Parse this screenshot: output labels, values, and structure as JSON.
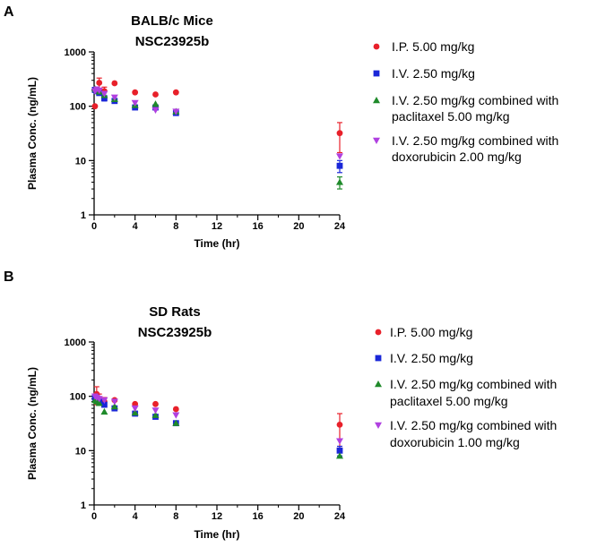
{
  "panels": [
    {
      "letter": "A"
    },
    {
      "letter": "B"
    }
  ],
  "chart_data": [
    {
      "type": "scatter",
      "title_line1": "BALB/c Mice",
      "title_line2": "NSC23925b",
      "xlabel": "Time (hr)",
      "ylabel": "Plasma Conc. (ng/mL)",
      "yscale": "log",
      "ylim": [
        1,
        1000
      ],
      "xlim": [
        0,
        24
      ],
      "xticks": [
        0,
        4,
        8,
        12,
        16,
        20,
        24
      ],
      "yticks": [
        1,
        10,
        100,
        1000
      ],
      "legend_position": "right",
      "series": [
        {
          "name": "I.P. 5.00 mg/kg",
          "marker": "circle",
          "color": "#e8202a",
          "x": [
            0.083,
            0.5,
            1,
            2,
            4,
            6,
            8,
            24
          ],
          "y": [
            100,
            270,
            190,
            265,
            180,
            165,
            180,
            32
          ],
          "err": [
            0,
            60,
            35,
            0,
            0,
            0,
            0,
            18
          ]
        },
        {
          "name": "I.V. 2.50 mg/kg",
          "marker": "square",
          "color": "#1a27d8",
          "x": [
            0.083,
            0.25,
            0.5,
            1,
            2,
            4,
            6,
            8,
            24
          ],
          "y": [
            200,
            190,
            175,
            140,
            125,
            95,
            95,
            75,
            8
          ],
          "err": [
            20,
            0,
            0,
            15,
            0,
            0,
            0,
            0,
            2
          ]
        },
        {
          "name": "I.V. 2.50 mg/kg combined with paclitaxel 5.00 mg/kg",
          "marker": "triangle-up",
          "color": "#1f8a2a",
          "x": [
            0.083,
            0.25,
            0.5,
            1,
            2,
            4,
            6,
            8,
            24
          ],
          "y": [
            210,
            200,
            185,
            160,
            135,
            105,
            110,
            80,
            4
          ],
          "err": [
            0,
            0,
            0,
            0,
            0,
            0,
            0,
            0,
            1
          ]
        },
        {
          "name": "I.V. 2.50 mg/kg combined with doxorubicin 2.00 mg/kg",
          "marker": "triangle-down",
          "color": "#b040e0",
          "x": [
            0.083,
            0.25,
            0.5,
            1,
            2,
            4,
            6,
            8,
            24
          ],
          "y": [
            190,
            205,
            195,
            170,
            145,
            115,
            85,
            80,
            12
          ],
          "err": [
            0,
            0,
            0,
            0,
            0,
            0,
            0,
            0,
            0
          ]
        }
      ],
      "legend_lines": [
        [
          "I.P. 5.00 mg/kg"
        ],
        [
          "I.V. 2.50 mg/kg"
        ],
        [
          "I.V. 2.50 mg/kg combined with",
          "paclitaxel 5.00 mg/kg"
        ],
        [
          "I.V. 2.50 mg/kg combined with",
          "doxorubicin 2.00 mg/kg"
        ]
      ]
    },
    {
      "type": "scatter",
      "title_line1": "SD Rats",
      "title_line2": "NSC23925b",
      "xlabel": "Time (hr)",
      "ylabel": "Plasma Conc. (ng/mL)",
      "yscale": "log",
      "ylim": [
        1,
        1000
      ],
      "xlim": [
        0,
        24
      ],
      "xticks": [
        0,
        4,
        8,
        12,
        16,
        20,
        24
      ],
      "yticks": [
        1,
        10,
        100,
        1000
      ],
      "legend_position": "right",
      "series": [
        {
          "name": "I.P. 5.00 mg/kg",
          "marker": "circle",
          "color": "#e8202a",
          "x": [
            0.25,
            0.5,
            1,
            2,
            4,
            6,
            8,
            24
          ],
          "y": [
            110,
            90,
            80,
            85,
            72,
            72,
            58,
            30
          ],
          "err": [
            40,
            20,
            15,
            0,
            0,
            0,
            0,
            18
          ]
        },
        {
          "name": "I.V. 2.50 mg/kg",
          "marker": "square",
          "color": "#1a27d8",
          "x": [
            0.083,
            0.25,
            0.5,
            1,
            2,
            4,
            6,
            8,
            24
          ],
          "y": [
            95,
            90,
            80,
            70,
            60,
            48,
            42,
            32,
            10
          ],
          "err": [
            10,
            0,
            0,
            0,
            0,
            0,
            0,
            0,
            2
          ]
        },
        {
          "name": "I.V. 2.50 mg/kg combined with paclitaxel 5.00 mg/kg",
          "marker": "triangle-up",
          "color": "#1f8a2a",
          "x": [
            0.083,
            0.25,
            0.5,
            1,
            2,
            4,
            6,
            8,
            24
          ],
          "y": [
            85,
            80,
            75,
            52,
            65,
            50,
            45,
            32,
            8
          ],
          "err": [
            0,
            0,
            0,
            0,
            0,
            0,
            0,
            0,
            0
          ]
        },
        {
          "name": "I.V. 2.50 mg/kg combined with doxorubicin 1.00 mg/kg",
          "marker": "triangle-down",
          "color": "#b040e0",
          "x": [
            0.083,
            0.25,
            0.5,
            1,
            2,
            4,
            6,
            8,
            24
          ],
          "y": [
            100,
            95,
            90,
            85,
            80,
            60,
            55,
            45,
            15
          ],
          "err": [
            0,
            0,
            0,
            0,
            0,
            0,
            0,
            0,
            0
          ]
        }
      ],
      "legend_lines": [
        [
          "I.P. 5.00 mg/kg"
        ],
        [
          "I.V. 2.50 mg/kg"
        ],
        [
          "I.V. 2.50 mg/kg combined with",
          "paclitaxel 5.00 mg/kg"
        ],
        [
          "I.V. 2.50 mg/kg combined with",
          "doxorubicin 1.00 mg/kg"
        ]
      ]
    }
  ]
}
